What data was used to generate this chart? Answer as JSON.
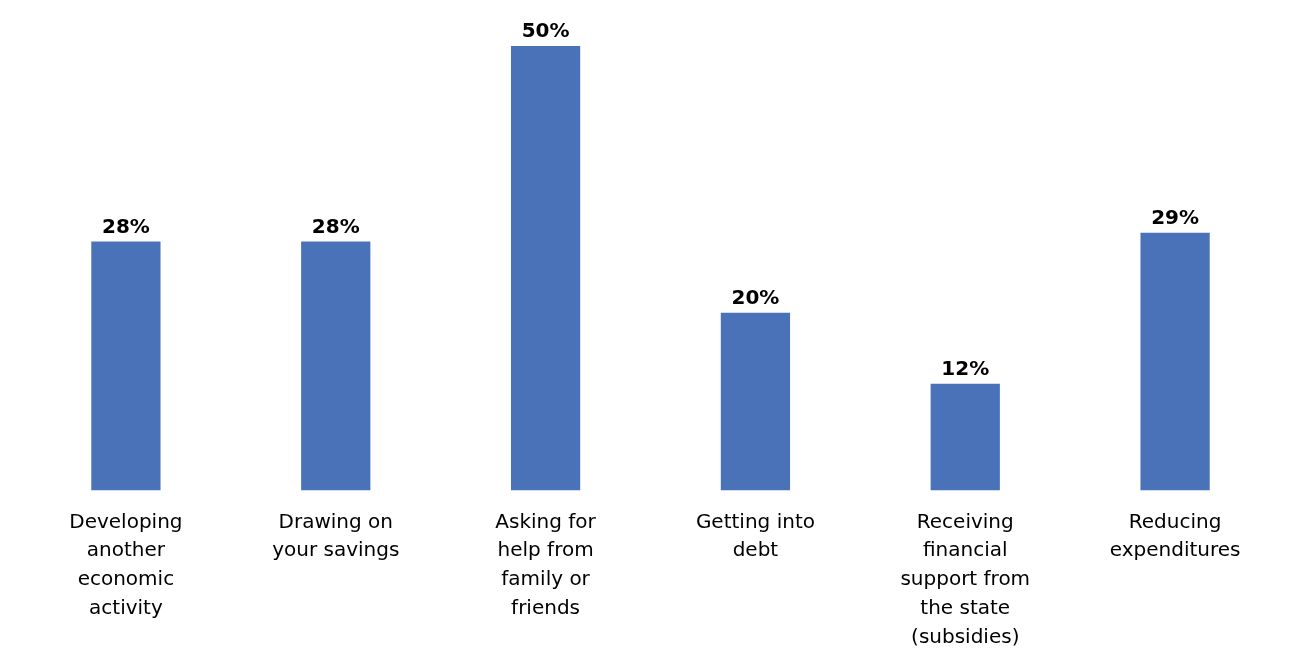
{
  "chart_data": {
    "type": "bar",
    "categories": [
      "Developing another economic activity",
      "Drawing on your savings",
      "Asking for help from family or friends",
      "Getting into debt",
      "Receiving financial support from the state (subsidies)",
      "Reducing expenditures"
    ],
    "values": [
      28,
      28,
      50,
      20,
      12,
      29
    ],
    "color": "#4a72b8",
    "data_labels": true,
    "value_labels": [
      "28%",
      "28%",
      "50%",
      "20%",
      "12%",
      "29%"
    ],
    "grid": false
  }
}
